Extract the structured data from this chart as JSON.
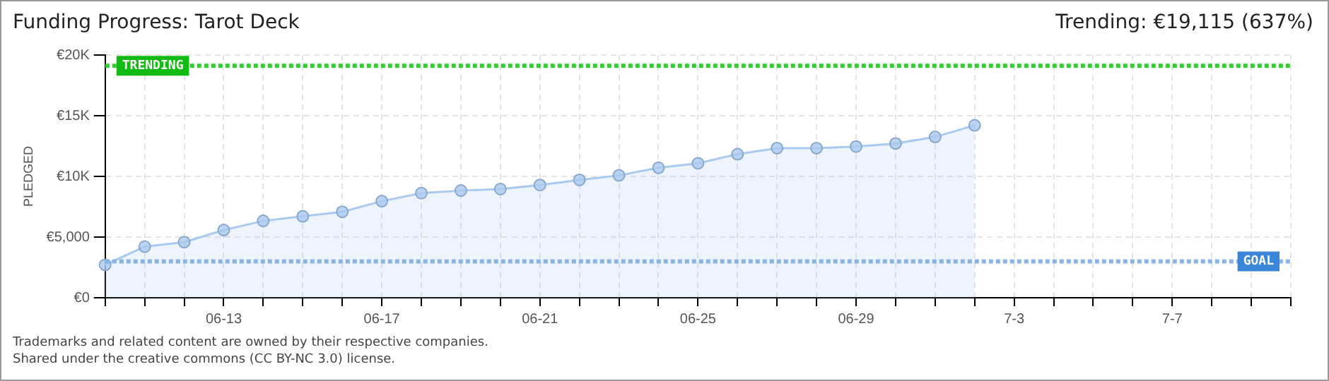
{
  "chart_data": {
    "type": "area",
    "title": "Funding Progress: Tarot Deck",
    "subtitle": "Trending: €19,115 (637%)",
    "ylabel": "PLEDGED",
    "categories": [
      null,
      null,
      null,
      "06-13",
      null,
      null,
      null,
      "06-17",
      null,
      null,
      null,
      "06-21",
      null,
      null,
      null,
      "06-25",
      null,
      null,
      null,
      "06-29",
      null,
      null,
      null,
      "7-3",
      null,
      null,
      null,
      "7-7",
      null,
      null,
      null
    ],
    "series": [
      {
        "color": "#a9c9ef",
        "values": [
          2710,
          4210,
          4580,
          5580,
          6330,
          6710,
          7080,
          7960,
          8620,
          8830,
          8960,
          9290,
          9710,
          10080,
          10710,
          11080,
          11830,
          12330,
          12330,
          12460,
          12710,
          13250,
          14210,
          null,
          null,
          null,
          null,
          null,
          null,
          null,
          null
        ]
      }
    ],
    "ylim": [
      0,
      20000
    ],
    "yticks": [
      {
        "value": 0,
        "label": "€0"
      },
      {
        "value": 5000,
        "label": "€5,000"
      },
      {
        "value": 10000,
        "label": "€10K"
      },
      {
        "value": 15000,
        "label": "€15K"
      },
      {
        "value": 20000,
        "label": "€20K"
      }
    ],
    "ref_lines": [
      {
        "axis": "y",
        "value": 19115,
        "label": "TRENDING",
        "color": "#33cc33",
        "line_style": "dotted"
      },
      {
        "axis": "y",
        "value": 3000,
        "label": "GOAL",
        "color": "#88b4e6",
        "line_style": "dotted"
      }
    ],
    "annotations": [
      "Trademarks and related content are owned by their respective companies.",
      "Shared under the creative commons (CC BY-NC 3.0) license."
    ],
    "grid": true,
    "marker": "circle",
    "legend": false
  }
}
